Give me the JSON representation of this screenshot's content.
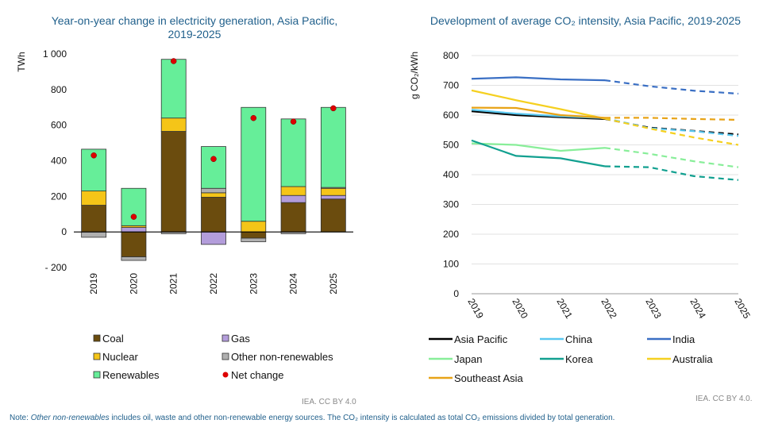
{
  "chart_data": [
    {
      "type": "bar",
      "stacked": true,
      "title": "Year-on-year change in electricity generation, Asia Pacific, 2019-2025",
      "ylabel": "TWh",
      "ylim": [
        -200,
        1000
      ],
      "yticks": [
        -200,
        0,
        200,
        400,
        600,
        800,
        1000
      ],
      "ytick_labels": [
        "- 200",
        "0",
        "200",
        "400",
        "600",
        "800",
        "1 000"
      ],
      "categories": [
        "2019",
        "2020",
        "2021",
        "2022",
        "2023",
        "2024",
        "2025"
      ],
      "series": [
        {
          "name": "Coal",
          "color": "#6b4c0e",
          "values": [
            150,
            -140,
            565,
            195,
            -35,
            165,
            185
          ]
        },
        {
          "name": "Gas",
          "color": "#b39ddb",
          "values": [
            0,
            25,
            0,
            -70,
            0,
            40,
            20
          ]
        },
        {
          "name": "Nuclear",
          "color": "#f5c518",
          "values": [
            80,
            10,
            75,
            25,
            60,
            50,
            40
          ]
        },
        {
          "name": "Other non-renewables",
          "color": "#b0b0b0",
          "values": [
            -30,
            -20,
            -10,
            25,
            -20,
            -10,
            5
          ]
        },
        {
          "name": "Renewables",
          "color": "#66ee99",
          "values": [
            235,
            210,
            330,
            235,
            640,
            380,
            450
          ]
        }
      ],
      "net_change": {
        "name": "Net change",
        "color": "#dd0000",
        "values": [
          430,
          85,
          960,
          410,
          640,
          620,
          695
        ]
      },
      "legend": [
        "Coal",
        "Gas",
        "Nuclear",
        "Other non-renewables",
        "Renewables",
        "Net change"
      ],
      "source": "IEA. CC BY 4.0"
    },
    {
      "type": "line",
      "title": "Development of average CO₂ intensity, Asia Pacific, 2019-2025",
      "ylabel": "g CO₂/kWh",
      "ylim": [
        0,
        800
      ],
      "yticks": [
        0,
        100,
        200,
        300,
        400,
        500,
        600,
        700,
        800
      ],
      "x": [
        "2019",
        "2020",
        "2021",
        "2022",
        "2023",
        "2024",
        "2025"
      ],
      "forecast_from": "2022",
      "series": [
        {
          "name": "Asia Pacific",
          "color": "#000000",
          "values": [
            613,
            600,
            593,
            587,
            558,
            547,
            535
          ]
        },
        {
          "name": "China",
          "color": "#5bc8f0",
          "values": [
            618,
            605,
            596,
            590,
            556,
            546,
            530
          ]
        },
        {
          "name": "India",
          "color": "#3a6fc4",
          "values": [
            722,
            727,
            720,
            717,
            697,
            682,
            672
          ]
        },
        {
          "name": "Japan",
          "color": "#88ee99",
          "values": [
            505,
            500,
            480,
            490,
            470,
            445,
            425
          ]
        },
        {
          "name": "Korea",
          "color": "#12a090",
          "values": [
            515,
            463,
            455,
            428,
            425,
            395,
            382
          ]
        },
        {
          "name": "Australia",
          "color": "#f5d020",
          "values": [
            683,
            650,
            620,
            588,
            555,
            525,
            500
          ]
        },
        {
          "name": "Southeast Asia",
          "color": "#e8a317",
          "values": [
            625,
            624,
            600,
            591,
            591,
            587,
            584
          ]
        }
      ],
      "legend": [
        "Asia Pacific",
        "China",
        "India",
        "Japan",
        "Korea",
        "Australia",
        "Southeast Asia"
      ],
      "source": "IEA. CC BY 4.0."
    }
  ],
  "titles": {
    "left_line1": "Year-on-year change in electricity generation, Asia Pacific,",
    "left_line2": "2019-2025",
    "right": "Development of average CO₂ intensity, Asia Pacific, 2019-2025"
  },
  "footer": {
    "note_label": "Note: ",
    "note_italic": "Other non-renewables",
    "note_rest": " includes oil, waste and other non-renewable energy sources. The CO₂ intensity is calculated as total CO₂ emissions divided by total generation."
  }
}
